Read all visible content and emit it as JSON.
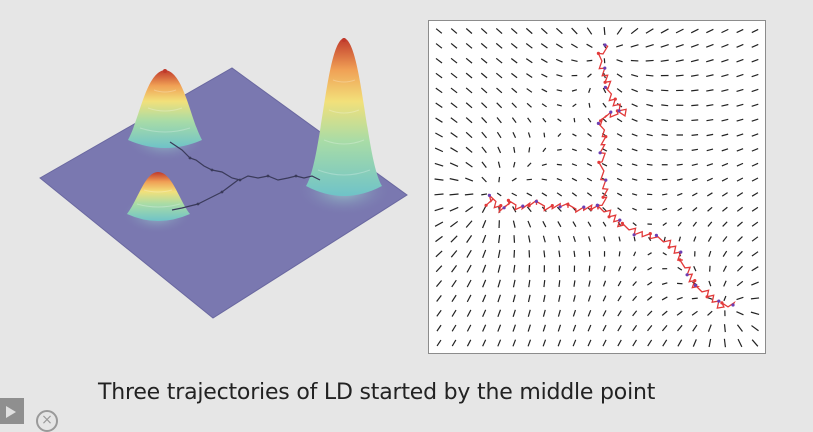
{
  "caption": "Three trajectories of LD started by the middle point",
  "player": {
    "close_glyph": "×",
    "play_icon": "play-icon",
    "close_icon": "close-circle-icon"
  },
  "colors": {
    "background": "#e6e6e6",
    "plane": "#7a78b0",
    "peak_top": "#c0392b",
    "peak_mid": "#f2e07a",
    "peak_base": "#6fc3c8",
    "trajectory": "#e23a3a",
    "trajectory_marker": "#6c3fb3",
    "arrow": "#222222"
  },
  "surface_plot": {
    "peaks": [
      "left-upper-peak",
      "left-lower-peak",
      "right-tall-peak"
    ]
  },
  "vector_field": {
    "trajectories": 3
  }
}
